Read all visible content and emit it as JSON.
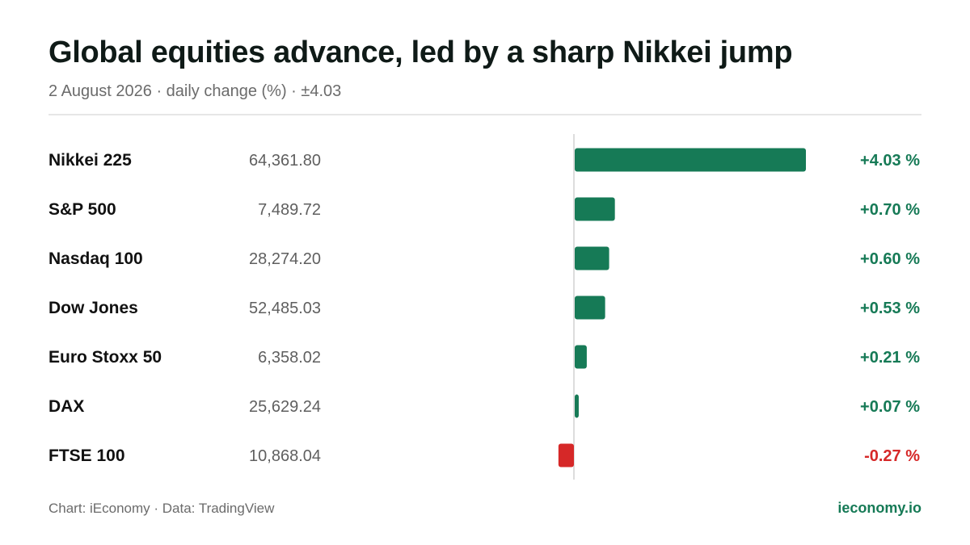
{
  "header": {
    "title": "Global equities advance, led by a sharp Nikkei jump",
    "subtitle": "2 August 2026 · daily change (%) · ±4.03"
  },
  "footer": {
    "source": "Chart: iEconomy · Data: TradingView",
    "brand": "ieconomy.io"
  },
  "colors": {
    "positive": "#167a56",
    "negative": "#d62828",
    "axis": "#dddddd"
  },
  "chart_data": {
    "type": "bar",
    "orientation": "horizontal",
    "xlim": [
      -0.4,
      4.03
    ],
    "grid": false,
    "categories": [
      "Nikkei 225",
      "S&P 500",
      "Nasdaq 100",
      "Dow Jones",
      "Euro Stoxx 50",
      "DAX",
      "FTSE 100"
    ],
    "index_levels": [
      "64,361.80",
      "7,489.72",
      "28,274.20",
      "52,485.03",
      "6,358.02",
      "25,629.24",
      "10,868.04"
    ],
    "values": [
      4.03,
      0.7,
      0.6,
      0.53,
      0.21,
      0.07,
      -0.27
    ],
    "value_labels": [
      "+4.03 %",
      "+0.70 %",
      "+0.60 %",
      "+0.53 %",
      "+0.21 %",
      "+0.07 %",
      "-0.27 %"
    ]
  }
}
